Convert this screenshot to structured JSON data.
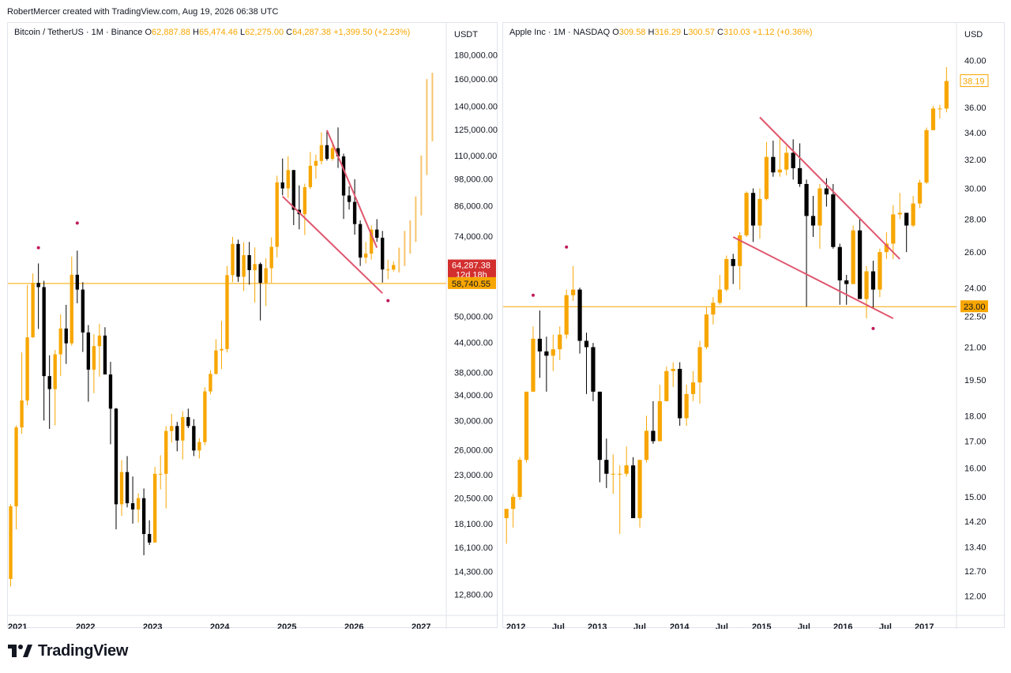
{
  "header": {
    "author_line": "RobertMercer created with TradingView.com, Aug 19, 2026 06:38 UTC"
  },
  "brand": {
    "name": "TradingView",
    "icon": "tradingview-logo-icon"
  },
  "colors": {
    "up": "#f7a600",
    "down": "#000000",
    "level": "#f7a600",
    "trend": "#e0566e",
    "marker": "#c2185b",
    "current_bg": "#d32f2f"
  },
  "left_panel": {
    "symbol": "Bitcoin / TetherUS · 1M · Binance",
    "ohlc": {
      "o_label": "O",
      "o": "62,887.88",
      "h_label": "H",
      "h": "65,474.46",
      "l_label": "L",
      "l": "62,275.00",
      "c_label": "C",
      "c": "64,287.38",
      "change": "+1,399.50 (+2.23%)"
    },
    "currency": "USDT",
    "price_axis": [
      "180,000.00",
      "160,000.00",
      "140,000.00",
      "125,000.00",
      "110,000.00",
      "98,000.00",
      "86,000.00",
      "74,000.00",
      "50,000.00",
      "44,000.00",
      "38,000.00",
      "34,000.00",
      "30,000.00",
      "26,000.00",
      "23,000.00",
      "20,500.00",
      "18,100.00",
      "16,100.00",
      "14,300.00",
      "12,800.00"
    ],
    "current_price": "64,287.38",
    "countdown": "12d 18h",
    "level_price": "58,740.55",
    "time_axis": [
      "2021",
      "2022",
      "2023",
      "2024",
      "2025",
      "2026",
      "2027"
    ]
  },
  "right_panel": {
    "symbol": "Apple Inc · 1M · NASDAQ",
    "ohlc": {
      "o_label": "O",
      "o": "309.58",
      "h_label": "H",
      "h": "316.29",
      "l_label": "L",
      "l": "300.57",
      "c_label": "C",
      "c": "310.03",
      "change": "+1.12 (+0.36%)"
    },
    "currency": "USD",
    "price_axis": [
      "40.00",
      "36.00",
      "34.00",
      "32.00",
      "30.00",
      "28.00",
      "26.00",
      "24.00",
      "22.50",
      "21.00",
      "19.50",
      "18.00",
      "17.00",
      "16.00",
      "15.00",
      "14.20",
      "13.40",
      "12.70",
      "12.00"
    ],
    "current_price": "38.19",
    "level_price": "23.00",
    "time_axis": [
      "2012",
      "Jul",
      "2013",
      "Jul",
      "2014",
      "Jul",
      "2015",
      "Jul",
      "2016",
      "Jul",
      "2017"
    ]
  },
  "chart_data": [
    {
      "type": "candlestick",
      "title": "Bitcoin / TetherUS · 1M · Binance",
      "scale": "log",
      "ylim": [
        12000,
        195000
      ],
      "xlim": [
        "2020-12",
        "2027-03"
      ],
      "horizontal_level": 58740.55,
      "candles": [
        [
          "2020-11",
          13800,
          19900,
          13300,
          19700
        ],
        [
          "2020-12",
          19700,
          29300,
          17600,
          29000
        ],
        [
          "2021-01",
          29000,
          41900,
          28100,
          33100
        ],
        [
          "2021-02",
          33100,
          58300,
          32300,
          45100
        ],
        [
          "2021-03",
          45100,
          61700,
          45000,
          58900
        ],
        [
          "2021-04",
          58900,
          64800,
          47000,
          57700
        ],
        [
          "2021-05",
          57700,
          59500,
          30000,
          37300
        ],
        [
          "2021-06",
          37300,
          41300,
          28800,
          35000
        ],
        [
          "2021-07",
          35000,
          42400,
          29300,
          41500
        ],
        [
          "2021-08",
          41500,
          50500,
          37300,
          47100
        ],
        [
          "2021-09",
          47100,
          52900,
          39600,
          43800
        ],
        [
          "2021-10",
          43800,
          67000,
          43300,
          61300
        ],
        [
          "2021-11",
          61300,
          69000,
          53300,
          57000
        ],
        [
          "2021-12",
          57000,
          59100,
          42000,
          46200
        ],
        [
          "2022-01",
          46200,
          47900,
          32900,
          38500
        ],
        [
          "2022-02",
          38500,
          45800,
          34300,
          43200
        ],
        [
          "2022-03",
          43200,
          48200,
          37200,
          45500
        ],
        [
          "2022-04",
          45500,
          47400,
          37700,
          37600
        ],
        [
          "2022-05",
          37600,
          40000,
          26700,
          31800
        ],
        [
          "2022-06",
          31800,
          31900,
          17600,
          19900
        ],
        [
          "2022-07",
          19900,
          24700,
          18800,
          23300
        ],
        [
          "2022-08",
          23300,
          25200,
          19600,
          20000
        ],
        [
          "2022-09",
          20000,
          22800,
          18100,
          19400
        ],
        [
          "2022-10",
          19400,
          21000,
          18200,
          20500
        ],
        [
          "2022-11",
          20500,
          21500,
          15500,
          17200
        ],
        [
          "2022-12",
          17200,
          18400,
          16300,
          16500
        ],
        [
          "2023-01",
          16500,
          23900,
          16500,
          23100
        ],
        [
          "2023-02",
          23100,
          25300,
          21400,
          23100
        ],
        [
          "2023-03",
          23100,
          29200,
          19500,
          28500
        ],
        [
          "2023-04",
          28500,
          31000,
          26900,
          29200
        ],
        [
          "2023-05",
          29200,
          29800,
          25800,
          27200
        ],
        [
          "2023-06",
          27200,
          31400,
          24800,
          30500
        ],
        [
          "2023-07",
          30500,
          31800,
          28900,
          29200
        ],
        [
          "2023-08",
          29200,
          30200,
          25200,
          25900
        ],
        [
          "2023-09",
          25900,
          27500,
          24900,
          27000
        ],
        [
          "2023-10",
          27000,
          35300,
          26600,
          34600
        ],
        [
          "2023-11",
          34600,
          38400,
          34100,
          37700
        ],
        [
          "2023-12",
          37700,
          44700,
          37600,
          42300
        ],
        [
          "2024-01",
          42300,
          48900,
          38600,
          42600
        ],
        [
          "2024-02",
          42600,
          64000,
          41900,
          61200
        ],
        [
          "2024-03",
          61200,
          73800,
          59100,
          71300
        ],
        [
          "2024-04",
          71300,
          72800,
          59200,
          60700
        ],
        [
          "2024-05",
          60700,
          71900,
          56600,
          67500
        ],
        [
          "2024-06",
          67500,
          72000,
          58400,
          62700
        ],
        [
          "2024-07",
          62700,
          70100,
          53500,
          64600
        ],
        [
          "2024-08",
          64600,
          65100,
          49000,
          58900
        ],
        [
          "2024-09",
          58900,
          66500,
          52600,
          63300
        ],
        [
          "2024-10",
          63300,
          73600,
          58900,
          70300
        ],
        [
          "2024-11",
          70300,
          99600,
          66800,
          96400
        ],
        [
          "2024-12",
          96400,
          108400,
          90500,
          93600
        ],
        [
          "2025-01",
          93600,
          109600,
          89200,
          102400
        ],
        [
          "2025-02",
          102400,
          102500,
          78200,
          84300
        ],
        [
          "2025-03",
          84300,
          95000,
          76600,
          82500
        ],
        [
          "2025-04",
          82500,
          95800,
          74500,
          94200
        ],
        [
          "2025-05",
          94200,
          111900,
          93300,
          104600
        ],
        [
          "2025-06",
          104600,
          110500,
          98200,
          107100
        ],
        [
          "2025-07",
          107100,
          123200,
          105300,
          115700
        ],
        [
          "2025-08",
          115700,
          124500,
          107300,
          108200
        ],
        [
          "2025-09",
          108200,
          117900,
          107200,
          114000
        ],
        [
          "2025-10",
          114000,
          126200,
          103500,
          109500
        ],
        [
          "2025-11",
          109500,
          111000,
          80600,
          90400
        ],
        [
          "2025-12",
          90400,
          94600,
          84400,
          87600
        ],
        [
          "2026-01",
          87600,
          97900,
          74600,
          78600
        ],
        [
          "2026-02",
          78600,
          80000,
          64000,
          66700
        ],
        [
          "2026-03",
          66700,
          72000,
          64800,
          68000
        ],
        [
          "2026-04",
          68000,
          78000,
          66000,
          76500
        ],
        [
          "2026-05",
          76500,
          80500,
          72000,
          73500
        ],
        [
          "2026-06",
          73500,
          76000,
          59000,
          62900
        ],
        [
          "2026-07",
          62900,
          66000,
          60000,
          62900
        ],
        [
          "2026-08",
          62887.88,
          65474.46,
          62275.0,
          64287.38
        ]
      ],
      "projection": [
        [
          "2026-09",
          64287,
          70000,
          62000,
          70000
        ],
        [
          "2026-10",
          70000,
          76000,
          64000,
          76000
        ],
        [
          "2026-11",
          76000,
          80000,
          68000,
          78000
        ],
        [
          "2026-12",
          78000,
          90000,
          72000,
          85000
        ],
        [
          "2027-01",
          85000,
          110000,
          82000,
          105000
        ],
        [
          "2027-02",
          105000,
          160000,
          100000,
          150000
        ],
        [
          "2027-03",
          150000,
          165000,
          118000,
          122000
        ]
      ],
      "trendlines": [
        {
          "from": [
            "2025-08",
            124500
          ],
          "to": [
            "2026-05",
            70000
          ]
        },
        {
          "from": [
            "2024-12",
            90000
          ],
          "to": [
            "2026-06",
            56000
          ]
        }
      ],
      "markers": [
        [
          "2021-04",
          70000
        ],
        [
          "2021-11",
          79000
        ],
        [
          "2026-07",
          54000
        ]
      ]
    },
    {
      "type": "candlestick",
      "title": "Apple Inc · 1M · NASDAQ",
      "scale": "log",
      "ylim": [
        11.7,
        42
      ],
      "xlim": [
        "2011-12",
        "2017-06"
      ],
      "horizontal_level": 23.0,
      "candles": [
        [
          "2011-12",
          14.3,
          14.6,
          13.5,
          14.6
        ],
        [
          "2011-12b",
          14.6,
          15.1,
          14.0,
          15.0
        ],
        [
          "2012-01",
          15.0,
          16.4,
          14.9,
          16.3
        ],
        [
          "2012-02",
          16.3,
          19.0,
          16.2,
          19.0
        ],
        [
          "2012-03",
          19.0,
          22.0,
          19.0,
          21.4
        ],
        [
          "2012-04",
          21.4,
          22.8,
          19.6,
          20.8
        ],
        [
          "2012-05",
          20.8,
          21.5,
          19.0,
          20.6
        ],
        [
          "2012-06",
          20.6,
          21.6,
          19.9,
          20.9
        ],
        [
          "2012-07",
          20.9,
          22.0,
          20.4,
          21.6
        ],
        [
          "2012-08",
          21.6,
          23.9,
          21.4,
          23.6
        ],
        [
          "2012-09",
          23.6,
          25.2,
          23.3,
          23.9
        ],
        [
          "2012-10",
          23.9,
          24.0,
          20.7,
          21.3
        ],
        [
          "2012-11",
          21.3,
          21.7,
          18.9,
          21.0
        ],
        [
          "2012-12",
          21.0,
          21.2,
          18.6,
          19.0
        ],
        [
          "2013-01",
          19.0,
          19.0,
          15.5,
          16.3
        ],
        [
          "2013-02",
          16.3,
          17.1,
          15.3,
          15.8
        ],
        [
          "2013-03",
          15.8,
          16.5,
          15.1,
          15.8
        ],
        [
          "2013-04",
          15.8,
          16.1,
          13.8,
          15.8
        ],
        [
          "2013-05",
          15.8,
          16.8,
          15.7,
          16.1
        ],
        [
          "2013-06",
          16.1,
          16.4,
          14.4,
          14.3
        ],
        [
          "2013-07",
          14.3,
          16.3,
          14.0,
          16.3
        ],
        [
          "2013-08",
          16.3,
          18.0,
          16.2,
          17.4
        ],
        [
          "2013-09",
          17.4,
          18.6,
          16.9,
          17.0
        ],
        [
          "2013-10",
          17.0,
          19.3,
          17.0,
          18.6
        ],
        [
          "2013-11",
          18.6,
          20.1,
          18.6,
          19.9
        ],
        [
          "2013-12",
          19.9,
          20.3,
          19.2,
          20.0
        ],
        [
          "2014-01",
          20.0,
          20.3,
          17.6,
          17.9
        ],
        [
          "2014-02",
          17.9,
          19.3,
          17.6,
          18.9
        ],
        [
          "2014-03",
          18.9,
          19.9,
          18.6,
          19.4
        ],
        [
          "2014-04",
          19.4,
          21.3,
          18.5,
          21.0
        ],
        [
          "2014-05",
          21.0,
          23.0,
          20.9,
          22.6
        ],
        [
          "2014-06",
          22.6,
          23.5,
          22.1,
          23.2
        ],
        [
          "2014-07",
          23.2,
          24.7,
          23.1,
          23.9
        ],
        [
          "2014-08",
          23.9,
          25.8,
          23.8,
          25.6
        ],
        [
          "2014-09",
          25.6,
          25.9,
          24.2,
          25.2
        ],
        [
          "2014-10",
          25.2,
          27.2,
          23.9,
          27.0
        ],
        [
          "2014-11",
          27.0,
          29.8,
          26.9,
          29.7
        ],
        [
          "2014-12",
          29.7,
          30.0,
          26.6,
          27.6
        ],
        [
          "2015-01",
          27.6,
          30.0,
          26.8,
          29.3
        ],
        [
          "2015-02",
          29.3,
          33.3,
          29.2,
          32.2
        ],
        [
          "2015-03",
          32.2,
          33.4,
          30.8,
          31.1
        ],
        [
          "2015-04",
          31.1,
          33.6,
          30.8,
          31.3
        ],
        [
          "2015-05",
          31.3,
          33.0,
          30.9,
          32.5
        ],
        [
          "2015-06",
          32.5,
          33.5,
          30.6,
          31.4
        ],
        [
          "2015-07",
          31.4,
          33.2,
          30.1,
          30.3
        ],
        [
          "2015-08",
          30.3,
          30.6,
          23.0,
          28.2
        ],
        [
          "2015-09",
          28.2,
          29.5,
          26.9,
          27.6
        ],
        [
          "2015-10",
          27.6,
          30.3,
          26.2,
          30.0
        ],
        [
          "2015-11",
          30.0,
          30.7,
          28.8,
          29.6
        ],
        [
          "2015-12",
          29.6,
          30.3,
          26.2,
          26.3
        ],
        [
          "2016-01",
          26.3,
          26.5,
          23.1,
          24.4
        ],
        [
          "2016-02",
          24.4,
          24.7,
          23.1,
          24.2
        ],
        [
          "2016-03",
          24.2,
          27.6,
          24.2,
          27.3
        ],
        [
          "2016-04",
          27.3,
          28.1,
          23.4,
          23.4
        ],
        [
          "2016-05",
          23.4,
          25.2,
          22.4,
          24.9
        ],
        [
          "2016-06",
          24.9,
          25.5,
          22.9,
          23.9
        ],
        [
          "2016-07",
          23.9,
          26.2,
          23.5,
          26.0
        ],
        [
          "2016-08",
          26.0,
          27.2,
          25.6,
          26.5
        ],
        [
          "2016-09",
          26.5,
          28.9,
          25.6,
          28.3
        ],
        [
          "2016-10",
          28.3,
          29.7,
          28.0,
          28.4
        ],
        [
          "2016-11",
          28.4,
          28.4,
          26.0,
          27.6
        ],
        [
          "2016-12",
          27.6,
          29.5,
          27.5,
          29.0
        ],
        [
          "2017-01",
          29.0,
          30.6,
          28.7,
          30.4
        ],
        [
          "2017-02",
          30.4,
          34.4,
          30.3,
          34.2
        ],
        [
          "2017-03",
          34.2,
          36.1,
          34.2,
          35.9
        ],
        [
          "2017-04",
          35.9,
          36.2,
          35.1,
          35.9
        ],
        [
          "2017-05",
          35.9,
          39.4,
          35.6,
          38.19
        ]
      ],
      "trendlines": [
        {
          "from": [
            "2015-01",
            35.2
          ],
          "to": [
            "2016-10",
            25.6
          ]
        },
        {
          "from": [
            "2014-09",
            26.9
          ],
          "to": [
            "2016-09",
            22.4
          ]
        }
      ],
      "markers": [
        [
          "2012-03",
          23.6
        ],
        [
          "2012-08",
          26.3
        ],
        [
          "2016-06",
          21.9
        ]
      ]
    }
  ]
}
